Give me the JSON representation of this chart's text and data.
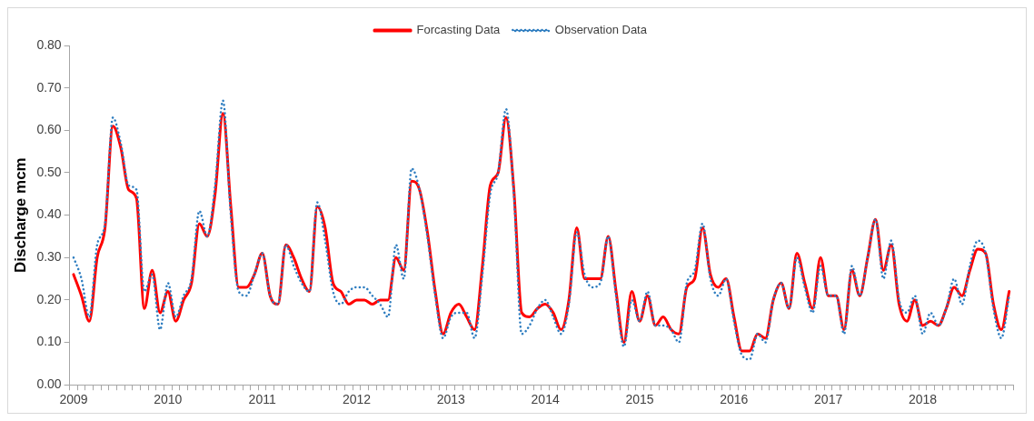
{
  "chart_data": {
    "type": "line",
    "ylabel": "Discharge mcm",
    "categories": [
      "2009",
      null,
      null,
      null,
      null,
      null,
      null,
      null,
      null,
      null,
      null,
      null,
      "2010",
      null,
      null,
      null,
      null,
      null,
      null,
      null,
      null,
      null,
      null,
      null,
      "2011",
      null,
      null,
      null,
      null,
      null,
      null,
      null,
      null,
      null,
      null,
      null,
      "2012",
      null,
      null,
      null,
      null,
      null,
      null,
      null,
      null,
      null,
      null,
      null,
      "2013",
      null,
      null,
      null,
      null,
      null,
      null,
      null,
      null,
      null,
      null,
      null,
      "2014",
      null,
      null,
      null,
      null,
      null,
      null,
      null,
      null,
      null,
      null,
      null,
      "2015",
      null,
      null,
      null,
      null,
      null,
      null,
      null,
      null,
      null,
      null,
      null,
      "2016",
      null,
      null,
      null,
      null,
      null,
      null,
      null,
      null,
      null,
      null,
      null,
      "2017",
      null,
      null,
      null,
      null,
      null,
      null,
      null,
      null,
      null,
      null,
      null,
      "2018",
      null,
      null,
      null,
      null,
      null,
      null,
      null,
      null,
      null,
      null,
      null
    ],
    "series": [
      {
        "name": "Forcasting Data",
        "color": "#ff0000",
        "line_style": "solid",
        "values": [
          0.26,
          0.21,
          0.15,
          0.3,
          0.37,
          0.61,
          0.56,
          0.46,
          0.44,
          0.18,
          0.27,
          0.17,
          0.22,
          0.15,
          0.2,
          0.24,
          0.38,
          0.35,
          0.45,
          0.64,
          0.42,
          0.23,
          0.23,
          0.26,
          0.31,
          0.21,
          0.19,
          0.33,
          0.3,
          0.25,
          0.22,
          0.42,
          0.37,
          0.24,
          0.22,
          0.19,
          0.2,
          0.2,
          0.19,
          0.2,
          0.2,
          0.3,
          0.27,
          0.48,
          0.46,
          0.36,
          0.22,
          0.12,
          0.17,
          0.19,
          0.16,
          0.13,
          0.28,
          0.47,
          0.5,
          0.63,
          0.46,
          0.17,
          0.16,
          0.18,
          0.19,
          0.17,
          0.13,
          0.2,
          0.37,
          0.25,
          0.25,
          0.25,
          0.35,
          0.22,
          0.1,
          0.22,
          0.15,
          0.21,
          0.14,
          0.16,
          0.13,
          0.12,
          0.23,
          0.25,
          0.37,
          0.26,
          0.23,
          0.25,
          0.16,
          0.08,
          0.08,
          0.12,
          0.11,
          0.2,
          0.24,
          0.18,
          0.31,
          0.24,
          0.18,
          0.3,
          0.21,
          0.21,
          0.13,
          0.27,
          0.21,
          0.3,
          0.39,
          0.27,
          0.33,
          0.19,
          0.15,
          0.2,
          0.14,
          0.15,
          0.14,
          0.18,
          0.23,
          0.21,
          0.27,
          0.32,
          0.31,
          0.19,
          0.13,
          0.22
        ]
      },
      {
        "name": "Observation Data",
        "color": "#2e7dc0",
        "line_style": "dotted",
        "values": [
          0.3,
          0.25,
          0.16,
          0.33,
          0.38,
          0.63,
          0.57,
          0.47,
          0.46,
          0.22,
          0.26,
          0.13,
          0.24,
          0.16,
          0.21,
          0.25,
          0.41,
          0.35,
          0.47,
          0.67,
          0.4,
          0.22,
          0.21,
          0.26,
          0.31,
          0.21,
          0.19,
          0.33,
          0.28,
          0.24,
          0.22,
          0.43,
          0.34,
          0.22,
          0.19,
          0.22,
          0.23,
          0.23,
          0.21,
          0.19,
          0.16,
          0.33,
          0.25,
          0.51,
          0.46,
          0.35,
          0.21,
          0.11,
          0.16,
          0.17,
          0.17,
          0.11,
          0.26,
          0.45,
          0.5,
          0.65,
          0.45,
          0.12,
          0.14,
          0.18,
          0.2,
          0.16,
          0.12,
          0.19,
          0.36,
          0.26,
          0.23,
          0.24,
          0.35,
          0.21,
          0.09,
          0.2,
          0.15,
          0.22,
          0.14,
          0.14,
          0.13,
          0.1,
          0.24,
          0.27,
          0.38,
          0.25,
          0.21,
          0.25,
          0.15,
          0.07,
          0.06,
          0.12,
          0.1,
          0.2,
          0.24,
          0.18,
          0.3,
          0.23,
          0.17,
          0.28,
          0.21,
          0.21,
          0.12,
          0.28,
          0.21,
          0.3,
          0.39,
          0.25,
          0.34,
          0.2,
          0.17,
          0.21,
          0.12,
          0.17,
          0.14,
          0.18,
          0.25,
          0.19,
          0.28,
          0.34,
          0.31,
          0.18,
          0.11,
          0.21
        ]
      }
    ],
    "ylim": [
      0,
      0.8
    ],
    "yticks": [
      {
        "value": 0,
        "label": "0.00"
      },
      {
        "value": 0.1,
        "label": "0.10"
      },
      {
        "value": 0.2,
        "label": "0.20"
      },
      {
        "value": 0.3,
        "label": "0.30"
      },
      {
        "value": 0.4,
        "label": "0.40"
      },
      {
        "value": 0.5,
        "label": "0.50"
      },
      {
        "value": 0.6,
        "label": "0.60"
      },
      {
        "value": 0.7,
        "label": "0.70"
      },
      {
        "value": 0.8,
        "label": "0.80"
      }
    ],
    "grid": false,
    "legend": "top",
    "marker": "none"
  }
}
